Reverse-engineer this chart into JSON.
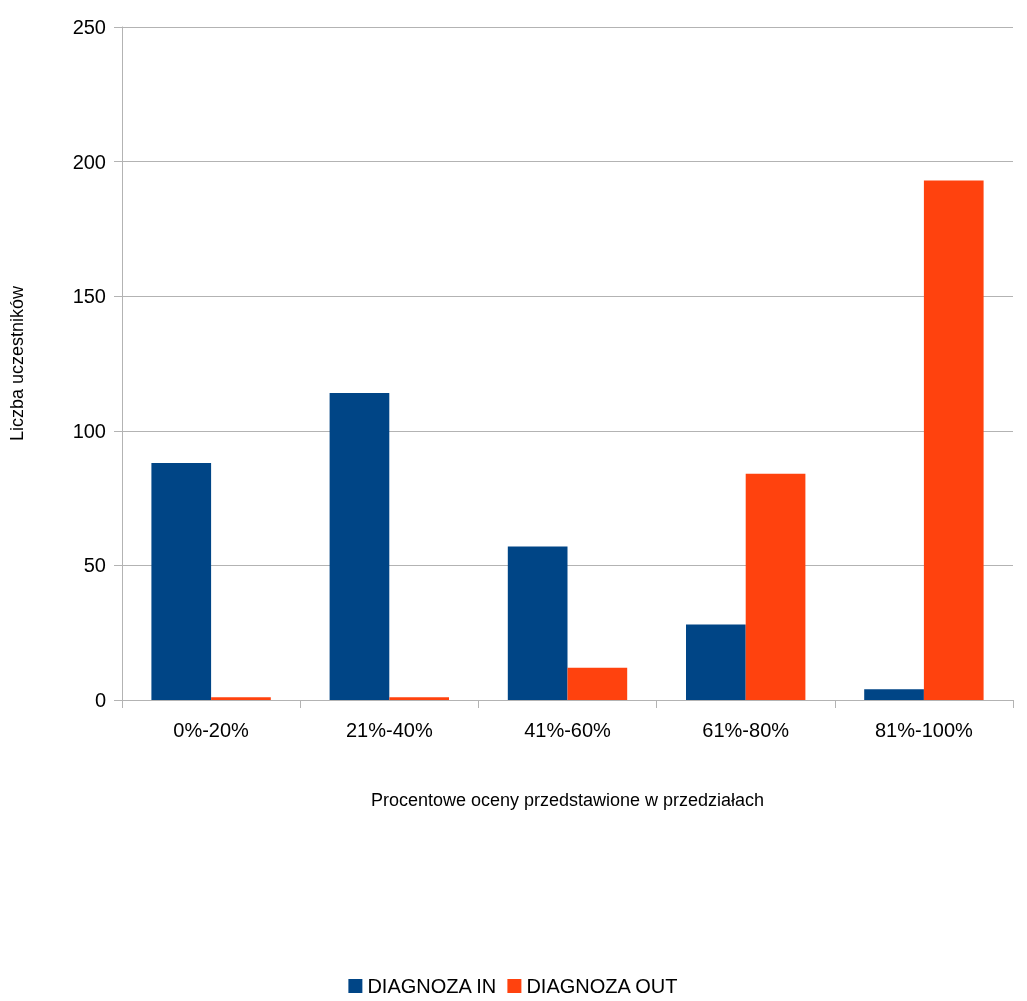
{
  "chart_data": {
    "type": "bar",
    "xlabel": "Procentowe oceny przedstawione w przedziałach",
    "ylabel": "Liczba uczestników",
    "categories": [
      "0%-20%",
      "21%-40%",
      "41%-60%",
      "61%-80%",
      "81%-100%"
    ],
    "series": [
      {
        "name": "DIAGNOZA IN",
        "color": "#004586",
        "values": [
          88,
          114,
          57,
          28,
          4
        ]
      },
      {
        "name": "DIAGNOZA OUT",
        "color": "#ff420e",
        "values": [
          1,
          1,
          12,
          84,
          193
        ]
      }
    ],
    "ylim": [
      0,
      250
    ],
    "yticks": [
      0,
      50,
      100,
      150,
      200,
      250
    ],
    "grid": "y",
    "legend": "bottom"
  }
}
